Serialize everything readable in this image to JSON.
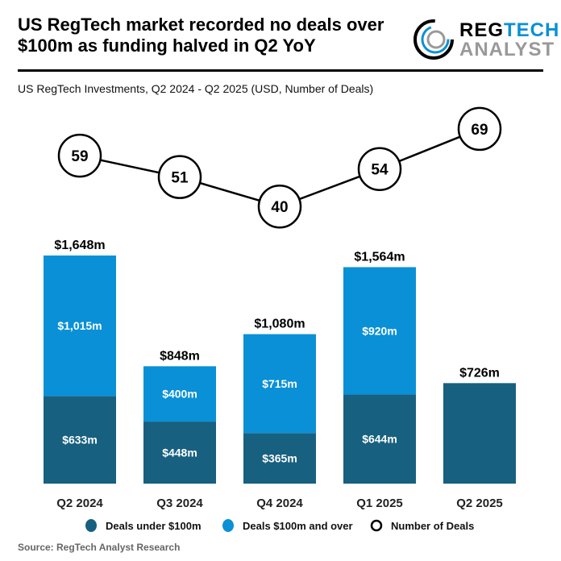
{
  "header": {
    "title_line1": "US RegTech market recorded no deals over",
    "title_line2": "$100m as funding halved in Q2 YoY"
  },
  "logo": {
    "word1a": "REG",
    "word1b": "TECH",
    "word2": "ANALYST"
  },
  "source": "Source: RegTech Analyst Research",
  "colors": {
    "under": "#17607F",
    "over": "#0A90D6",
    "line": "#000000"
  },
  "chart_data": {
    "type": "bar",
    "title": "US RegTech Investments, Q2 2024 - Q2 2025 (USD, Number of Deals)",
    "categories": [
      "Q2 2024",
      "Q3 2024",
      "Q4 2024",
      "Q1 2025",
      "Q2 2025"
    ],
    "series": [
      {
        "name": "Deals under $100m",
        "values": [
          633,
          448,
          365,
          644,
          726
        ],
        "labels": [
          "$633m",
          "$448m",
          "$365m",
          "$644m",
          ""
        ]
      },
      {
        "name": "Deals $100m and over",
        "values": [
          1015,
          400,
          715,
          920,
          0
        ],
        "labels": [
          "$1,015m",
          "$400m",
          "$715m",
          "$920m",
          ""
        ]
      },
      {
        "name": "Number of Deals",
        "type": "line",
        "values": [
          59,
          51,
          40,
          54,
          69
        ]
      }
    ],
    "totals": [
      "$1,648m",
      "$848m",
      "$1,080m",
      "$1,564m",
      "$726m"
    ],
    "legend": "bottom"
  }
}
